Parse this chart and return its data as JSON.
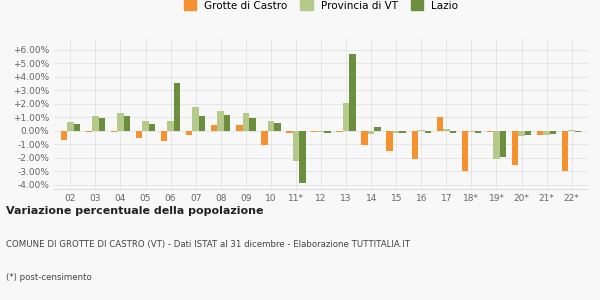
{
  "years": [
    "02",
    "03",
    "04",
    "05",
    "06",
    "07",
    "08",
    "09",
    "10",
    "11*",
    "12",
    "13",
    "14",
    "15",
    "16",
    "17",
    "18*",
    "19*",
    "20*",
    "21*",
    "22*"
  ],
  "grotte": [
    -0.65,
    -0.1,
    -0.05,
    -0.55,
    -0.75,
    -0.3,
    0.45,
    0.45,
    -1.05,
    -0.15,
    -0.1,
    -0.05,
    -1.05,
    -1.5,
    -2.1,
    1.0,
    -3.0,
    -0.1,
    -2.5,
    -0.3,
    -3.0
  ],
  "provincia": [
    0.65,
    1.1,
    1.3,
    0.72,
    0.72,
    1.8,
    1.5,
    1.35,
    0.72,
    -2.25,
    -0.1,
    2.05,
    -0.2,
    -0.18,
    0.1,
    0.12,
    -0.1,
    -2.1,
    -0.38,
    -0.28,
    0.08
  ],
  "lazio": [
    0.48,
    0.98,
    1.12,
    0.52,
    3.55,
    1.12,
    1.18,
    0.98,
    0.62,
    -3.85,
    -0.18,
    5.7,
    0.28,
    -0.12,
    -0.18,
    -0.12,
    -0.18,
    -1.92,
    -0.32,
    -0.22,
    -0.08
  ],
  "color_grotte": "#f5922f",
  "color_provincia": "#b5c98a",
  "color_lazio": "#6b8f3e",
  "yticks": [
    -4.0,
    -3.0,
    -2.0,
    -1.0,
    0.0,
    1.0,
    2.0,
    3.0,
    4.0,
    5.0,
    6.0
  ],
  "ylim": [
    -4.3,
    6.8
  ],
  "title_bold": "Variazione percentuale della popolazione",
  "subtitle": "COMUNE DI GROTTE DI CASTRO (VT) - Dati ISTAT al 31 dicembre - Elaborazione TUTTITALIA.IT",
  "footnote": "(*) post-censimento",
  "legend_labels": [
    "Grotte di Castro",
    "Provincia di VT",
    "Lazio"
  ],
  "background_color": "#f8f8f8",
  "grid_color": "#dddddd"
}
